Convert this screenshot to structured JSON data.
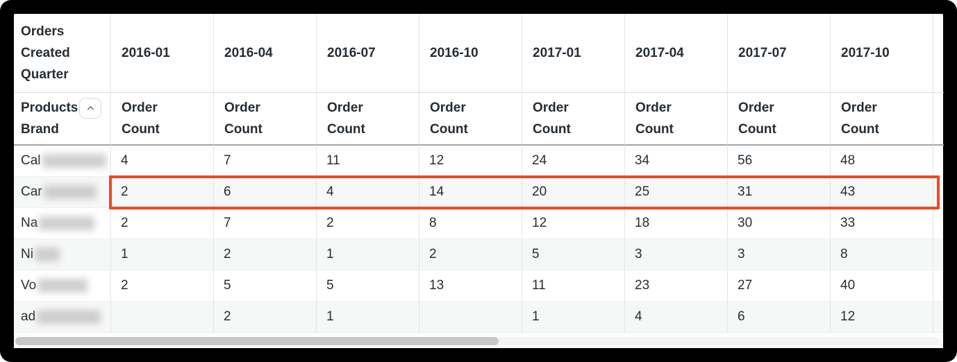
{
  "window": {
    "frame_color": "#000000"
  },
  "pivot_table": {
    "corner_header": "Orders Created Quarter",
    "row_dimension_header": "Products Brand",
    "collapse_icon": "chevron-up-icon",
    "measure_label": "Order Count",
    "column_headers": [
      "2016-01",
      "2016-04",
      "2016-07",
      "2016-10",
      "2017-01",
      "2017-04",
      "2017-07",
      "2017-10"
    ],
    "rows": [
      {
        "brand_prefix": "Cal",
        "redacted": true,
        "blur_width": 92,
        "highlighted": false,
        "values": [
          "4",
          "7",
          "11",
          "12",
          "24",
          "34",
          "56",
          "48"
        ]
      },
      {
        "brand_prefix": "Car",
        "redacted": true,
        "blur_width": 76,
        "highlighted": true,
        "values": [
          "2",
          "6",
          "4",
          "14",
          "20",
          "25",
          "31",
          "43"
        ]
      },
      {
        "brand_prefix": "Na",
        "redacted": true,
        "blur_width": 80,
        "highlighted": false,
        "values": [
          "2",
          "7",
          "2",
          "8",
          "12",
          "18",
          "30",
          "33"
        ]
      },
      {
        "brand_prefix": "Ni",
        "redacted": true,
        "blur_width": 36,
        "highlighted": false,
        "values": [
          "1",
          "2",
          "1",
          "2",
          "5",
          "3",
          "3",
          "8"
        ]
      },
      {
        "brand_prefix": "Vo",
        "redacted": true,
        "blur_width": 72,
        "highlighted": false,
        "values": [
          "2",
          "5",
          "5",
          "13",
          "11",
          "23",
          "27",
          "40"
        ]
      },
      {
        "brand_prefix": "ad",
        "redacted": true,
        "blur_width": 92,
        "highlighted": false,
        "values": [
          "",
          "2",
          "1",
          "",
          "1",
          "4",
          "6",
          "12"
        ]
      }
    ],
    "highlight": {
      "row_brand_prefix": "Car",
      "color": "#f04822"
    },
    "colors": {
      "text": "#262d33",
      "row_stripe": "#f6f7f7",
      "grid_line": "#e1e4e6",
      "header_rule": "#9da5ab"
    }
  },
  "scrollbar": {
    "orientation": "horizontal",
    "thumb_color": "#c7c7c7"
  }
}
